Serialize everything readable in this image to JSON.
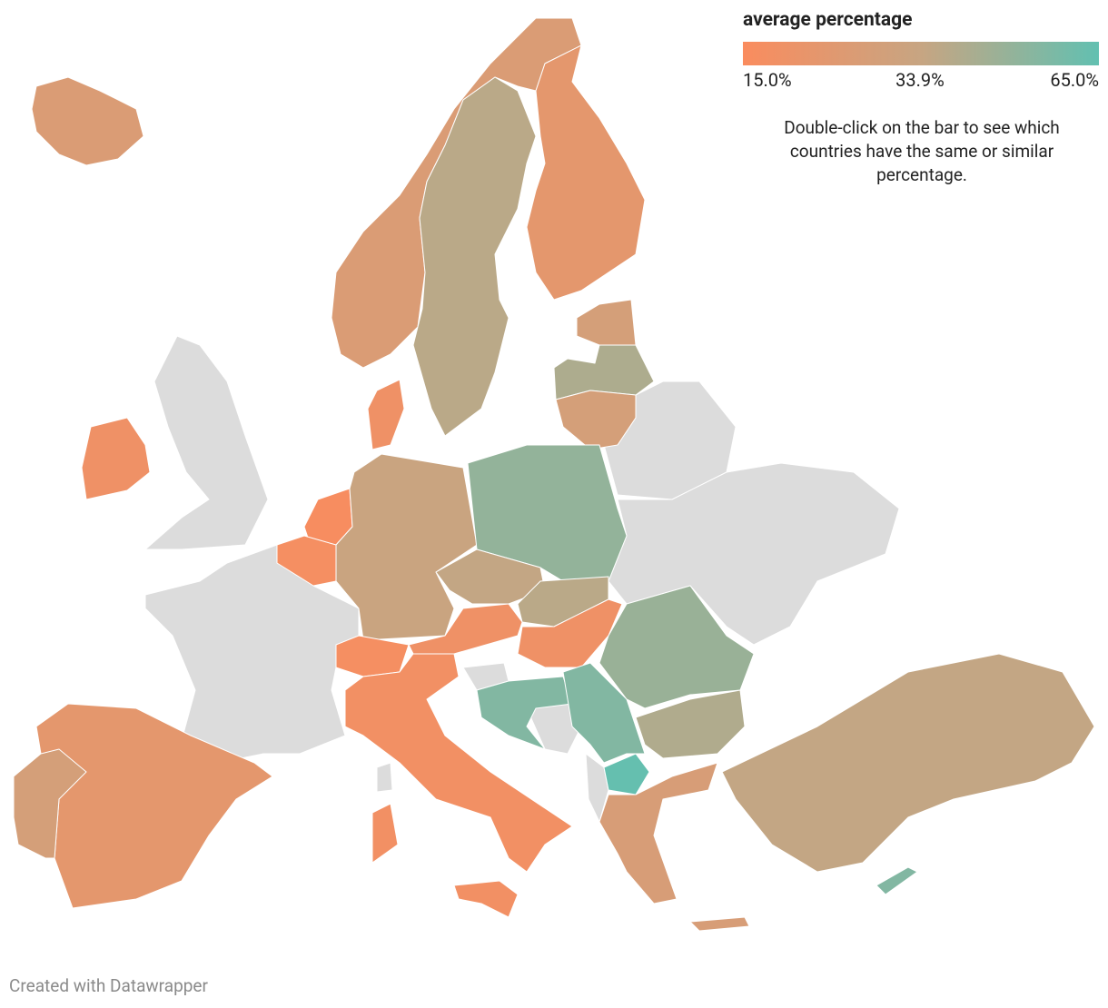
{
  "legend": {
    "title": "average percentage",
    "stops": [
      {
        "value": 15,
        "label": "15.0%",
        "color": "#fa8c5e"
      },
      {
        "value": 33.9,
        "label": "33.9%",
        "color": "#c7a582"
      },
      {
        "value": 65,
        "label": "65.0%",
        "color": "#62c0b1"
      }
    ]
  },
  "note": "Double-click on the bar to see which countries have the same or similar percentage.",
  "map": {
    "values": [
      27,
      27,
      38,
      23,
      29,
      42,
      29,
      19,
      19,
      16,
      17,
      33,
      50,
      35,
      38,
      19,
      19,
      17,
      18,
      18,
      18,
      23,
      29,
      55,
      55,
      48,
      41,
      64,
      28,
      28,
      35,
      55
    ]
  },
  "footer": "Created with Datawrapper"
}
